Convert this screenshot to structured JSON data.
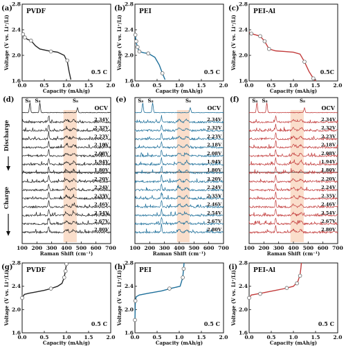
{
  "figure": {
    "colors": {
      "PVDF": "#222222",
      "PEI": "#1d6f9a",
      "PEI-Al": "#c23b3b",
      "highlight": "#f6c8a8"
    },
    "side_labels": {
      "discharge": "Discharge",
      "charge": "Charge"
    },
    "ocv_label": "OCV",
    "s8_label": "S₈",
    "discharge_voltages": [
      "2.34V",
      "2.32V",
      "2.23V",
      "2.18V",
      "2.08V",
      "1.94V",
      "1.80V"
    ],
    "charge_voltages": [
      "2.20V",
      "2.24V",
      "2.35V",
      "2.46V",
      "2.54V",
      "2.67V",
      "2.80V"
    ]
  },
  "chart_data": [
    {
      "id": "a",
      "panel_label": "(a)",
      "title": "PVDF",
      "rate_label": "0.5 C",
      "type": "line",
      "xlabel": "Capacity (mAh/g)",
      "ylabel": "Voltage (V vs. Li⁺/Li)",
      "xlim": [
        0,
        2
      ],
      "ylim": [
        1.6,
        2.8
      ],
      "xticks": [
        "0.0",
        "0.5",
        "1.0",
        "1.5",
        "2.0"
      ],
      "yticks": [
        "1.6",
        "2.0",
        "2.4",
        "2.8"
      ],
      "series": [
        {
          "key": "PVDF",
          "x": [
            0.0,
            0.02,
            0.06,
            0.12,
            0.2,
            0.3,
            0.4,
            0.6,
            0.8,
            0.95,
            1.02,
            1.06,
            1.1
          ],
          "y": [
            2.36,
            2.31,
            2.28,
            2.25,
            2.23,
            2.15,
            2.1,
            2.07,
            2.05,
            2.0,
            1.9,
            1.75,
            1.62
          ]
        }
      ],
      "markers": {
        "x": [
          0.02,
          0.06,
          0.2,
          0.65,
          1.02
        ],
        "y": [
          2.33,
          2.28,
          2.23,
          2.06,
          1.92
        ]
      }
    },
    {
      "id": "b",
      "panel_label": "(b)",
      "title": "PEI",
      "rate_label": "0.5 C",
      "type": "line",
      "xlabel": "Capacity (mAh/g)",
      "ylabel": "Voltage (V vs. Li⁺/Li)",
      "xlim": [
        0,
        2
      ],
      "ylim": [
        1.6,
        2.8
      ],
      "xticks": [
        "0.0",
        "0.5",
        "1.0",
        "1.5",
        "2.0"
      ],
      "yticks": [
        "1.6",
        "2.0",
        "2.4",
        "2.8"
      ],
      "series": [
        {
          "key": "PEI",
          "x": [
            0.0,
            0.01,
            0.03,
            0.06,
            0.1,
            0.2,
            0.3,
            0.45,
            0.55,
            0.62,
            0.68
          ],
          "y": [
            2.34,
            2.3,
            2.2,
            2.12,
            2.06,
            2.04,
            2.03,
            1.97,
            1.85,
            1.72,
            1.62
          ]
        }
      ],
      "markers": {
        "x": [
          0.01,
          0.03,
          0.06,
          0.1,
          0.3,
          0.62
        ],
        "y": [
          2.32,
          2.22,
          2.13,
          2.06,
          2.03,
          1.72
        ]
      }
    },
    {
      "id": "c",
      "panel_label": "(c)",
      "title": "PEI-Al",
      "rate_label": "0.5C",
      "type": "line",
      "xlabel": "Capacity (mAh/g)",
      "ylabel": "Voltage (V vs. Li⁺/Li)",
      "xlim": [
        0,
        2
      ],
      "ylim": [
        1.6,
        2.8
      ],
      "xticks": [
        "0.0",
        "0.5",
        "1.0",
        "1.5",
        "2.0"
      ],
      "yticks": [
        "1.6",
        "2.0",
        "2.4",
        "2.8"
      ],
      "series": [
        {
          "key": "PEI-Al",
          "x": [
            0.0,
            0.05,
            0.15,
            0.25,
            0.35,
            0.45,
            0.6,
            0.8,
            1.0,
            1.15,
            1.25,
            1.35,
            1.45,
            1.5
          ],
          "y": [
            2.36,
            2.34,
            2.32,
            2.3,
            2.22,
            2.1,
            2.07,
            2.06,
            2.05,
            2.02,
            1.9,
            1.75,
            1.64,
            1.6
          ]
        }
      ],
      "markers": {
        "x": [
          0.05,
          0.25,
          0.35,
          0.45,
          1.25,
          1.45
        ],
        "y": [
          2.34,
          2.3,
          2.22,
          2.1,
          1.9,
          1.64
        ]
      }
    },
    {
      "id": "d",
      "panel_label": "(d)",
      "type": "line",
      "series_key": "PVDF",
      "xlabel": "Raman Shift (cm⁻¹)",
      "xlim": [
        100,
        700
      ],
      "xticks": [
        "100",
        "200",
        "300",
        "400",
        "500",
        "600",
        "700"
      ],
      "highlight_range": [
        380,
        470
      ],
      "ocv_peaks": [
        153,
        220,
        475
      ]
    },
    {
      "id": "e",
      "panel_label": "(e)",
      "type": "line",
      "series_key": "PEI",
      "xlabel": "Raman Shift (cm⁻¹)",
      "xlim": [
        100,
        700
      ],
      "xticks": [
        "100",
        "200",
        "300",
        "400",
        "500",
        "600",
        "700"
      ],
      "highlight_range": [
        385,
        470
      ],
      "ocv_peaks": [
        153,
        220,
        475
      ]
    },
    {
      "id": "f",
      "panel_label": "(f)",
      "type": "line",
      "series_key": "PEI-Al",
      "xlabel": "Raman Shift (cm⁻¹)",
      "xlim": [
        100,
        700
      ],
      "xticks": [
        "100",
        "200",
        "300",
        "400",
        "500",
        "600",
        "700"
      ],
      "highlight_range": [
        380,
        470
      ],
      "ocv_peaks": [
        153,
        220,
        475
      ]
    },
    {
      "id": "g",
      "panel_label": "(g)",
      "title": "PVDF",
      "rate_label": "0.5 C",
      "type": "line",
      "xlabel": "Capacity (mAh/g)",
      "ylabel": "Voltage (V vs. Li⁺/Li)",
      "xlim": [
        0,
        2
      ],
      "ylim": [
        1.6,
        2.8
      ],
      "xticks": [
        "0.0",
        "0.5",
        "1.0",
        "1.5",
        "2.0"
      ],
      "yticks": [
        "1.6",
        "2.0",
        "2.4",
        "2.8"
      ],
      "series": [
        {
          "key": "PVDF",
          "x": [
            0.0,
            0.05,
            0.15,
            0.3,
            0.5,
            0.65,
            0.8,
            0.9,
            0.95,
            0.98,
            1.0,
            1.01
          ],
          "y": [
            2.2,
            2.26,
            2.28,
            2.3,
            2.33,
            2.36,
            2.4,
            2.45,
            2.55,
            2.68,
            2.78,
            2.8
          ]
        }
      ],
      "markers": {
        "x": [
          0.0,
          0.65,
          0.95,
          0.98,
          1.0
        ],
        "y": [
          2.2,
          2.36,
          2.55,
          2.66,
          2.78
        ]
      }
    },
    {
      "id": "h",
      "panel_label": "(h)",
      "title": "PEI",
      "rate_label": "0.5 C",
      "type": "line",
      "xlabel": "Capacity (mAh/g)",
      "ylabel": "Voltage (V vs. Li⁺/Li)",
      "xlim": [
        0,
        2
      ],
      "ylim": [
        1.6,
        2.8
      ],
      "xticks": [
        "0.0",
        "0.5",
        "1.0",
        "1.5",
        "2.0"
      ],
      "yticks": [
        "1.6",
        "2.0",
        "2.4",
        "2.8"
      ],
      "series": [
        {
          "key": "PEI",
          "x": [
            0.0,
            0.005,
            0.01,
            0.03,
            0.1,
            0.3,
            0.6,
            0.85,
            1.02,
            1.08,
            1.1,
            1.11
          ],
          "y": [
            1.8,
            2.0,
            2.15,
            2.22,
            2.25,
            2.28,
            2.32,
            2.37,
            2.4,
            2.55,
            2.72,
            2.8
          ]
        }
      ],
      "markers": {
        "x": [
          0.0,
          0.01,
          0.78,
          1.08,
          1.1
        ],
        "y": [
          1.82,
          2.15,
          2.36,
          2.55,
          2.7
        ]
      }
    },
    {
      "id": "i",
      "panel_label": "(i)",
      "title": "PEI-Al",
      "rate_label": "0.5 C",
      "type": "line",
      "xlabel": "Capacity (mAh/g)",
      "ylabel": "Voltage (V vs. Li⁺/Li)",
      "xlim": [
        0,
        2
      ],
      "ylim": [
        1.6,
        2.8
      ],
      "xticks": [
        "0.0",
        "0.5",
        "1.0",
        "1.5",
        "2.0"
      ],
      "yticks": [
        "1.6",
        "2.0",
        "2.4",
        "2.8"
      ],
      "series": [
        {
          "key": "PEI-Al",
          "x": [
            0.0,
            0.05,
            0.2,
            0.4,
            0.6,
            0.8,
            1.0,
            1.1,
            1.15,
            1.17,
            1.18
          ],
          "y": [
            2.2,
            2.25,
            2.27,
            2.3,
            2.33,
            2.36,
            2.4,
            2.48,
            2.6,
            2.72,
            2.8
          ]
        }
      ],
      "markers": {
        "x": [
          0.0,
          0.25,
          0.85,
          1.08,
          1.15
        ],
        "y": [
          2.2,
          2.27,
          2.37,
          2.45,
          2.58
        ]
      }
    }
  ]
}
